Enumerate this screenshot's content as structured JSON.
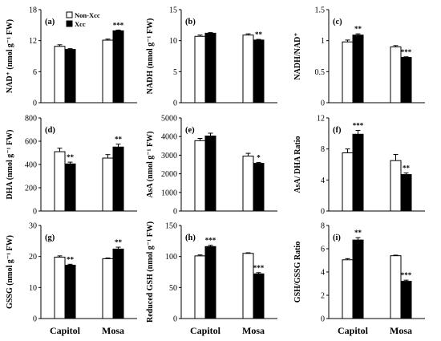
{
  "chart_data": [
    {
      "id": "a",
      "type": "bar",
      "panel_label": "(a)",
      "ylabel": "NAD⁺ (nmol g⁻¹ FW)",
      "categories": [
        "Capitol",
        "Mosa"
      ],
      "ylim": [
        0,
        18
      ],
      "yticks": [
        "0",
        "6",
        "12",
        "18"
      ],
      "ytick_values": [
        0,
        6,
        12,
        18
      ],
      "series": [
        {
          "name": "Non-Xcc",
          "values": [
            10.9,
            12.1
          ],
          "errors": [
            0.3,
            0.2
          ],
          "sig": [
            "",
            ""
          ]
        },
        {
          "name": "Xcc",
          "values": [
            10.3,
            13.9
          ],
          "errors": [
            0.15,
            0.15
          ],
          "sig": [
            "",
            "***"
          ]
        }
      ],
      "legend": {
        "show": true,
        "placement": "top-left"
      }
    },
    {
      "id": "d",
      "type": "bar",
      "panel_label": "(d)",
      "ylabel": "DHA (nmol g⁻¹ FW)",
      "categories": [
        "Capitol",
        "Mosa"
      ],
      "ylim": [
        0,
        800
      ],
      "yticks": [
        "0",
        "200",
        "400",
        "600",
        "800"
      ],
      "ytick_values": [
        0,
        200,
        400,
        600,
        800
      ],
      "series": [
        {
          "name": "Non-Xcc",
          "values": [
            510,
            455
          ],
          "errors": [
            30,
            30
          ],
          "sig": [
            "",
            ""
          ]
        },
        {
          "name": "Xcc",
          "values": [
            405,
            550
          ],
          "errors": [
            15,
            25
          ],
          "sig": [
            "**",
            "**"
          ]
        }
      ],
      "legend": {
        "show": false
      }
    },
    {
      "id": "g",
      "type": "bar",
      "panel_label": "(g)",
      "ylabel": "GSSG (nmol g⁻¹ FW)",
      "categories": [
        "Capitol",
        "Mosa"
      ],
      "ylim": [
        0,
        30
      ],
      "yticks": [
        "0",
        "10",
        "20",
        "30"
      ],
      "ytick_values": [
        0,
        10,
        20,
        30
      ],
      "series": [
        {
          "name": "Non-Xcc",
          "values": [
            19.8,
            19.3
          ],
          "errors": [
            0.4,
            0.2
          ],
          "sig": [
            "",
            ""
          ]
        },
        {
          "name": "Xcc",
          "values": [
            17.2,
            22.4
          ],
          "errors": [
            0.3,
            0.6
          ],
          "sig": [
            "**",
            "**"
          ]
        }
      ],
      "legend": {
        "show": false
      }
    },
    {
      "id": "b",
      "type": "bar",
      "panel_label": "(b)",
      "ylabel": "NADH (nmol g⁻¹ FW)",
      "categories": [
        "Capitol",
        "Mosa"
      ],
      "ylim": [
        0,
        15
      ],
      "yticks": [
        "0",
        "5",
        "10",
        "15"
      ],
      "ytick_values": [
        0,
        5,
        10,
        15
      ],
      "series": [
        {
          "name": "Non-Xcc",
          "values": [
            10.7,
            10.9
          ],
          "errors": [
            0.2,
            0.2
          ],
          "sig": [
            "",
            ""
          ]
        },
        {
          "name": "Xcc",
          "values": [
            11.2,
            10.1
          ],
          "errors": [
            0.1,
            0.1
          ],
          "sig": [
            "",
            "**"
          ]
        }
      ],
      "legend": {
        "show": false
      }
    },
    {
      "id": "e",
      "type": "bar",
      "panel_label": "(e)",
      "ylabel": "AsA (nmol g⁻¹ FW)",
      "categories": [
        "Capitol",
        "Mosa"
      ],
      "ylim": [
        0,
        5000
      ],
      "yticks": [
        "0",
        "1000",
        "2000",
        "3000",
        "4000",
        "5000"
      ],
      "ytick_values": [
        0,
        1000,
        2000,
        3000,
        4000,
        5000
      ],
      "series": [
        {
          "name": "Non-Xcc",
          "values": [
            3780,
            2950
          ],
          "errors": [
            120,
            150
          ],
          "sig": [
            "",
            ""
          ]
        },
        {
          "name": "Xcc",
          "values": [
            4030,
            2560
          ],
          "errors": [
            150,
            50
          ],
          "sig": [
            "",
            "*"
          ]
        }
      ],
      "legend": {
        "show": false
      }
    },
    {
      "id": "h",
      "type": "bar",
      "panel_label": "(h)",
      "ylabel": "Reduced GSH (nmol g⁻¹ FW)",
      "categories": [
        "Capitol",
        "Mosa"
      ],
      "ylim": [
        0,
        150
      ],
      "yticks": [
        "0",
        "50",
        "100",
        "150"
      ],
      "ytick_values": [
        0,
        50,
        100,
        150
      ],
      "series": [
        {
          "name": "Non-Xcc",
          "values": [
            101,
            105
          ],
          "errors": [
            1.5,
            1
          ],
          "sig": [
            "",
            ""
          ]
        },
        {
          "name": "Xcc",
          "values": [
            116,
            72
          ],
          "errors": [
            2,
            2
          ],
          "sig": [
            "***",
            "***"
          ]
        }
      ],
      "legend": {
        "show": false
      }
    },
    {
      "id": "c",
      "type": "bar",
      "panel_label": "(c)",
      "ylabel": "NADH/NAD⁺",
      "categories": [
        "Capitol",
        "Mosa"
      ],
      "ylim": [
        0,
        1.5
      ],
      "yticks": [
        "0",
        "0.5",
        "1",
        "1.5"
      ],
      "ytick_values": [
        0,
        0.5,
        1,
        1.5
      ],
      "series": [
        {
          "name": "Non-Xcc",
          "values": [
            0.98,
            0.9
          ],
          "errors": [
            0.03,
            0.02
          ],
          "sig": [
            "",
            ""
          ]
        },
        {
          "name": "Xcc",
          "values": [
            1.09,
            0.73
          ],
          "errors": [
            0.02,
            0.01
          ],
          "sig": [
            "**",
            "***"
          ]
        }
      ],
      "legend": {
        "show": false
      }
    },
    {
      "id": "f",
      "type": "bar",
      "panel_label": "(f)",
      "ylabel": "AsA/ DHA Ratio",
      "categories": [
        "Capitol",
        "Mosa"
      ],
      "ylim": [
        0,
        12
      ],
      "yticks": [
        "0",
        "4",
        "8",
        "12"
      ],
      "ytick_values": [
        0,
        4,
        8,
        12
      ],
      "series": [
        {
          "name": "Non-Xcc",
          "values": [
            7.5,
            6.5
          ],
          "errors": [
            0.5,
            0.8
          ],
          "sig": [
            "",
            ""
          ]
        },
        {
          "name": "Xcc",
          "values": [
            9.9,
            4.7
          ],
          "errors": [
            0.5,
            0.2
          ],
          "sig": [
            "***",
            "**"
          ]
        }
      ],
      "legend": {
        "show": false
      }
    },
    {
      "id": "i",
      "type": "bar",
      "panel_label": "(i)",
      "ylabel": "GSH/GSSG Ratio",
      "categories": [
        "Capitol",
        "Mosa"
      ],
      "ylim": [
        0,
        8
      ],
      "yticks": [
        "0",
        "2",
        "4",
        "6",
        "8"
      ],
      "ytick_values": [
        0,
        2,
        4,
        6,
        8
      ],
      "series": [
        {
          "name": "Non-Xcc",
          "values": [
            5.05,
            5.4
          ],
          "errors": [
            0.1,
            0.05
          ],
          "sig": [
            "",
            ""
          ]
        },
        {
          "name": "Xcc",
          "values": [
            6.75,
            3.2
          ],
          "errors": [
            0.2,
            0.1
          ],
          "sig": [
            "**",
            "***"
          ]
        }
      ],
      "legend": {
        "show": false
      }
    }
  ],
  "series_colors": {
    "Non-Xcc": "#ffffff",
    "Xcc": "#000000"
  }
}
